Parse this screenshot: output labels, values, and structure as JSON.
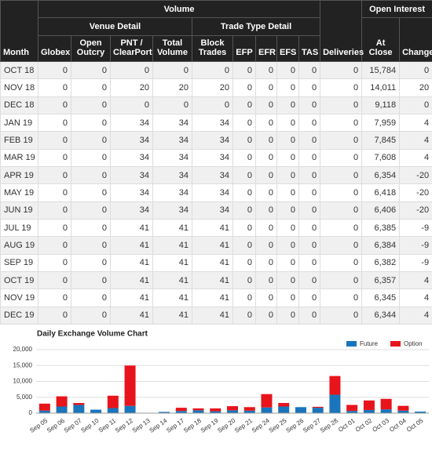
{
  "table": {
    "header": {
      "month": "Month",
      "volume": "Volume",
      "venue_detail": "Venue Detail",
      "trade_type_detail": "Trade Type Detail",
      "deliveries": "Deliveries",
      "open_interest": "Open Interest",
      "columns": [
        "Globex",
        "Open Outcry",
        "PNT / ClearPort",
        "Total Volume",
        "Block Trades",
        "EFP",
        "EFR",
        "EFS",
        "TAS",
        "At Close",
        "Change"
      ]
    },
    "rows": [
      [
        "OCT 18",
        "0",
        "0",
        "0",
        "0",
        "0",
        "0",
        "0",
        "0",
        "0",
        "0",
        "15,784",
        "0"
      ],
      [
        "NOV 18",
        "0",
        "0",
        "20",
        "20",
        "20",
        "0",
        "0",
        "0",
        "0",
        "0",
        "14,011",
        "20"
      ],
      [
        "DEC 18",
        "0",
        "0",
        "0",
        "0",
        "0",
        "0",
        "0",
        "0",
        "0",
        "0",
        "9,118",
        "0"
      ],
      [
        "JAN 19",
        "0",
        "0",
        "34",
        "34",
        "34",
        "0",
        "0",
        "0",
        "0",
        "0",
        "7,959",
        "4"
      ],
      [
        "FEB 19",
        "0",
        "0",
        "34",
        "34",
        "34",
        "0",
        "0",
        "0",
        "0",
        "0",
        "7,845",
        "4"
      ],
      [
        "MAR 19",
        "0",
        "0",
        "34",
        "34",
        "34",
        "0",
        "0",
        "0",
        "0",
        "0",
        "7,608",
        "4"
      ],
      [
        "APR 19",
        "0",
        "0",
        "34",
        "34",
        "34",
        "0",
        "0",
        "0",
        "0",
        "0",
        "6,354",
        "-20"
      ],
      [
        "MAY 19",
        "0",
        "0",
        "34",
        "34",
        "34",
        "0",
        "0",
        "0",
        "0",
        "0",
        "6,418",
        "-20"
      ],
      [
        "JUN 19",
        "0",
        "0",
        "34",
        "34",
        "34",
        "0",
        "0",
        "0",
        "0",
        "0",
        "6,406",
        "-20"
      ],
      [
        "JUL 19",
        "0",
        "0",
        "41",
        "41",
        "41",
        "0",
        "0",
        "0",
        "0",
        "0",
        "6,385",
        "-9"
      ],
      [
        "AUG 19",
        "0",
        "0",
        "41",
        "41",
        "41",
        "0",
        "0",
        "0",
        "0",
        "0",
        "6,384",
        "-9"
      ],
      [
        "SEP 19",
        "0",
        "0",
        "41",
        "41",
        "41",
        "0",
        "0",
        "0",
        "0",
        "0",
        "6,382",
        "-9"
      ],
      [
        "OCT 19",
        "0",
        "0",
        "41",
        "41",
        "41",
        "0",
        "0",
        "0",
        "0",
        "0",
        "6,357",
        "4"
      ],
      [
        "NOV 19",
        "0",
        "0",
        "41",
        "41",
        "41",
        "0",
        "0",
        "0",
        "0",
        "0",
        "6,345",
        "4"
      ],
      [
        "DEC 19",
        "0",
        "0",
        "41",
        "41",
        "41",
        "0",
        "0",
        "0",
        "0",
        "0",
        "6,344",
        "4"
      ]
    ]
  },
  "chart_data": {
    "type": "stacked_bar",
    "title": "Daily Exchange Volume Chart",
    "categories": [
      "Sep 05",
      "Sep 06",
      "Sep 07",
      "Sep 10",
      "Sep 11",
      "Sep 12",
      "Sep 13",
      "Sep 14",
      "Sep 17",
      "Sep 18",
      "Sep 19",
      "Sep 20",
      "Sep 21",
      "Sep 24",
      "Sep 25",
      "Sep 26",
      "Sep 27",
      "Sep 28",
      "Oct 01",
      "Oct 02",
      "Oct 03",
      "Oct 04",
      "Oct 05"
    ],
    "series": [
      {
        "name": "Future",
        "color": "#1a75bc",
        "values": [
          800,
          2100,
          2600,
          1100,
          1600,
          2300,
          100,
          400,
          700,
          900,
          600,
          900,
          800,
          1800,
          2100,
          1900,
          1700,
          5800,
          700,
          1000,
          1200,
          800,
          500
        ]
      },
      {
        "name": "Option",
        "color": "#e8141b",
        "values": [
          2200,
          3200,
          600,
          0,
          3900,
          12700,
          0,
          0,
          1000,
          600,
          900,
          1300,
          1100,
          4200,
          1100,
          0,
          300,
          5900,
          1900,
          3000,
          3300,
          1500,
          0
        ]
      }
    ],
    "ylim": [
      0,
      20000
    ],
    "yticks": [
      0,
      {
        "value": 5000,
        "label": "5,000"
      },
      {
        "value": 10000,
        "label": "10,000"
      },
      {
        "value": 15000,
        "label": "15,000"
      },
      {
        "value": 20000,
        "label": "20,000"
      }
    ],
    "grid": true,
    "legend": "top-right"
  }
}
